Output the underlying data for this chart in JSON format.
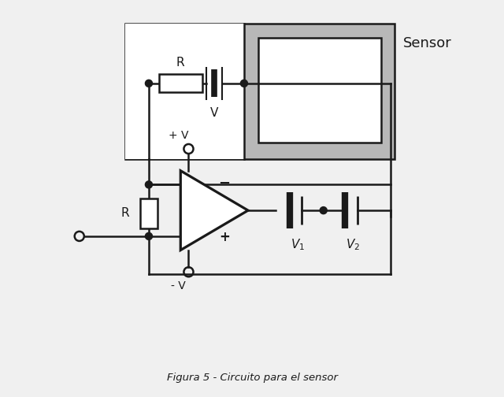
{
  "title": "Figura 5 - Circuito para el sensor",
  "background_color": "#f0f0f0",
  "line_color": "#1a1a1a",
  "sensor_gray": "#b8b8b8",
  "fig_width": 6.4,
  "fig_height": 5.04,
  "dpi": 100,
  "lw": 1.8,
  "sensor_label": "Sensor",
  "R_label": "R",
  "V_label": "V",
  "V1_label": "V",
  "V2_label": "V",
  "plusV_label": "+ V",
  "minusV_label": "- V"
}
